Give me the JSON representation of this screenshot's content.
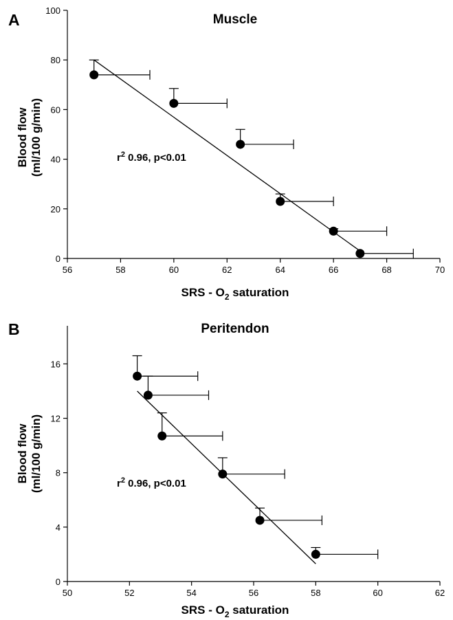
{
  "chart_data": [
    {
      "type": "scatter",
      "panel": "A",
      "title": "Muscle",
      "xlabel": "SRS - O",
      "xlabel_sub": "2",
      "xlabel_suffix": " saturation",
      "ylabel_line1": "Blood flow",
      "ylabel_line2": "(ml/100 g/min)",
      "xlim": [
        56,
        70
      ],
      "ylim": [
        0,
        100
      ],
      "xticks": [
        56,
        58,
        60,
        62,
        64,
        66,
        68,
        70
      ],
      "yticks": [
        0,
        20,
        40,
        60,
        80,
        100
      ],
      "annotation_r": "r",
      "annotation_sup": "2",
      "annotation_rest": " 0.96, p<0.01",
      "points": [
        {
          "x": 57.0,
          "y": 74,
          "yerr": 6,
          "xerr": 2.1
        },
        {
          "x": 60.0,
          "y": 62.5,
          "yerr": 6,
          "xerr": 2.0
        },
        {
          "x": 62.5,
          "y": 46,
          "yerr": 6,
          "xerr": 2.0
        },
        {
          "x": 64.0,
          "y": 23,
          "yerr": 3,
          "xerr": 2.0
        },
        {
          "x": 66.0,
          "y": 11,
          "yerr": 1,
          "xerr": 2.0
        },
        {
          "x": 67.0,
          "y": 2,
          "yerr": 0,
          "xerr": 2.0
        }
      ],
      "fit_line": [
        [
          57.0,
          80
        ],
        [
          67.0,
          3
        ]
      ]
    },
    {
      "type": "scatter",
      "panel": "B",
      "title": "Peritendon",
      "xlabel": "SRS - O",
      "xlabel_sub": "2",
      "xlabel_suffix": " saturation",
      "ylabel_line1": "Blood flow",
      "ylabel_line2": "(ml/100 g/min)",
      "xlim": [
        50,
        62
      ],
      "ylim": [
        0,
        18.8
      ],
      "xticks": [
        50,
        52,
        54,
        56,
        58,
        60,
        62
      ],
      "yticks": [
        0,
        4,
        8,
        12,
        16
      ],
      "annotation_r": "r",
      "annotation_sup": "2",
      "annotation_rest": " 0.96, p<0.01",
      "points": [
        {
          "x": 52.25,
          "y": 15.1,
          "yerr": 1.5,
          "xerr": 1.95
        },
        {
          "x": 52.6,
          "y": 13.7,
          "yerr": 1.4,
          "xerr": 1.95
        },
        {
          "x": 53.05,
          "y": 10.7,
          "yerr": 1.7,
          "xerr": 1.95
        },
        {
          "x": 55.0,
          "y": 7.9,
          "yerr": 1.2,
          "xerr": 2.0
        },
        {
          "x": 56.2,
          "y": 4.5,
          "yerr": 0.9,
          "xerr": 2.0
        },
        {
          "x": 58.0,
          "y": 2.0,
          "yerr": 0.5,
          "xerr": 2.0
        }
      ],
      "fit_line": [
        [
          52.25,
          14.0
        ],
        [
          58.0,
          1.3
        ]
      ]
    }
  ]
}
